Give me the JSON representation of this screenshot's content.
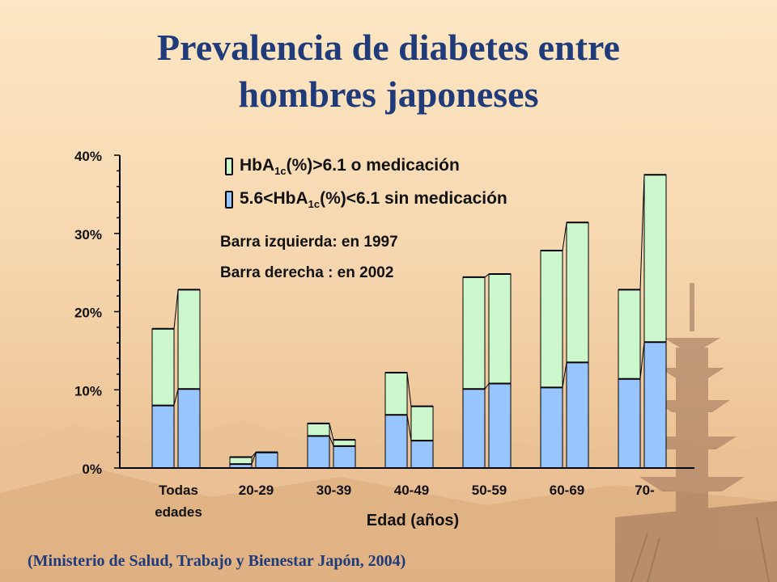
{
  "title": {
    "line1": "Prevalencia de diabetes entre",
    "line2": "hombres japoneses"
  },
  "legend": {
    "item1": {
      "pre": "HbA",
      "sub": "1c",
      "post": "(%)>6.1 o medicación",
      "color": "#ccf7cc"
    },
    "item2": {
      "pre": "5.6<HbA",
      "sub": "1c",
      "post": "(%)<6.1 sin medicación",
      "color": "#99c5ff"
    }
  },
  "notes": {
    "left_bar": "Barra izquierda: en 1997",
    "right_bar": "Barra derecha : en 2002"
  },
  "source": "(Ministerio de Salud, Trabajo y Bienestar Japón, 2004)",
  "chart_data": {
    "type": "bar",
    "stacked": true,
    "categories": [
      "Todas\nedades",
      "20-29",
      "30-39",
      "40-49",
      "50-59",
      "60-69",
      "70-"
    ],
    "category_label_lines": [
      [
        "Todas",
        "edades"
      ],
      [
        "20-29"
      ],
      [
        "30-39"
      ],
      [
        "40-49"
      ],
      [
        "50-59"
      ],
      [
        "60-69"
      ],
      [
        "70-"
      ]
    ],
    "xlabel": "Edad (años)",
    "ylabel": "",
    "ylim": [
      0,
      40
    ],
    "yticks": [
      0,
      10,
      20,
      30,
      40
    ],
    "ytick_labels": [
      "0%",
      "10%",
      "20%",
      "30%",
      "40%"
    ],
    "years": [
      "1997",
      "2002"
    ],
    "series": [
      {
        "name": "5.6<HbA1c(%)<6.1 sin medicación",
        "color": "#99c5ff",
        "values_1997": [
          8.0,
          0.5,
          4.1,
          6.8,
          10.1,
          10.3,
          11.4
        ],
        "values_2002": [
          10.1,
          2.0,
          2.8,
          3.5,
          10.8,
          13.5,
          16.1
        ]
      },
      {
        "name": "HbA1c(%)>6.1 o medicación",
        "color": "#ccf7cc",
        "values_1997": [
          9.8,
          0.9,
          1.6,
          5.4,
          14.3,
          17.5,
          11.4
        ],
        "values_2002": [
          12.7,
          0.0,
          0.8,
          4.4,
          14.0,
          17.9,
          21.4
        ]
      }
    ]
  }
}
